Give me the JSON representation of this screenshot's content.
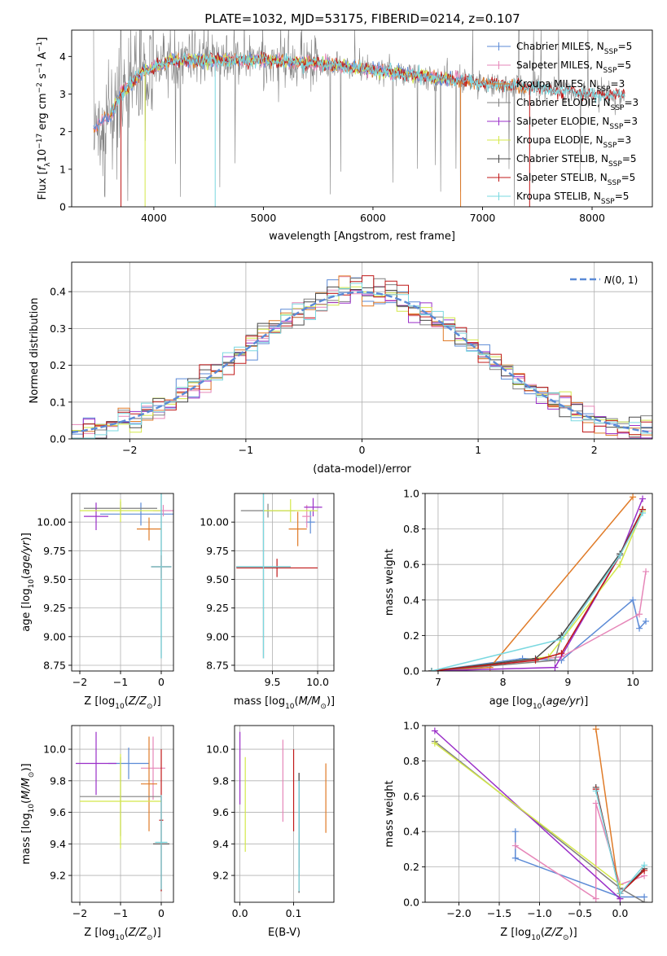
{
  "figure": {
    "title": "PLATE=1032, MJD=53175, FIBERID=0214, z=0.107"
  },
  "colors": {
    "Chabrier MILES": "#5b8ad6",
    "Salpeter MILES": "#e686b8",
    "Kroupa MILES": "#e07b28",
    "Chabrier ELODIE": "#808080",
    "Salpeter ELODIE": "#9a2fc8",
    "Kroupa ELODIE": "#d4e84a",
    "Chabrier STELIB": "#4a4a4a",
    "Salpeter STELIB": "#c01818",
    "Kroupa STELIB": "#7ad8e0"
  },
  "legends": {
    "spectrum": [
      "Chabrier MILES, N_SSP=5",
      "Salpeter MILES, N_SSP=5",
      "Kroupa MILES, N_SSP=3",
      "Chabrier ELODIE, N_SSP=3",
      "Salpeter ELODIE, N_SSP=3",
      "Kroupa ELODIE, N_SSP=3",
      "Chabrier STELIB, N_SSP=5",
      "Salpeter STELIB, N_SSP=5",
      "Kroupa STELIB, N_SSP=5"
    ],
    "residual": "N(0,1)"
  },
  "chart_data": [
    {
      "id": "spectrum",
      "type": "line",
      "xlabel": "wavelength [Angstrom, rest frame]",
      "ylabel": "Flux [f_λ10^-17 erg cm^-2 s^-1 A^-1]",
      "xlim": [
        3250,
        8550
      ],
      "ylim": [
        0,
        4.7
      ],
      "xticks": [
        4000,
        5000,
        6000,
        7000,
        8000
      ],
      "yticks": [
        0,
        1,
        2,
        3,
        4
      ],
      "grid": false,
      "legend": "top-right",
      "envelope": [
        [
          3450,
          2.1
        ],
        [
          3600,
          2.4
        ],
        [
          3700,
          3.0
        ],
        [
          3800,
          3.3
        ],
        [
          3900,
          3.6
        ],
        [
          4000,
          3.7
        ],
        [
          4200,
          3.9
        ],
        [
          4500,
          3.9
        ],
        [
          5000,
          3.9
        ],
        [
          5500,
          3.8
        ],
        [
          6000,
          3.65
        ],
        [
          6500,
          3.45
        ],
        [
          7000,
          3.3
        ],
        [
          7500,
          3.15
        ],
        [
          8000,
          3.0
        ],
        [
          8300,
          2.95
        ]
      ]
    },
    {
      "id": "residuals",
      "type": "histogram",
      "xlabel": "(data-model)/error",
      "ylabel": "Normed distribution",
      "xlim": [
        -2.5,
        2.5
      ],
      "ylim": [
        0,
        0.48
      ],
      "xticks": [
        -2,
        -1,
        0,
        1,
        2
      ],
      "yticks": [
        0.0,
        0.1,
        0.2,
        0.3,
        0.4
      ],
      "grid": true,
      "legend": "top-right",
      "bin_width": 0.1,
      "reference": "normal(0,1)"
    },
    {
      "id": "age-vs-Z",
      "type": "scatter",
      "xlabel": "Z [log10(Z/Z☉)]",
      "ylabel": "age  [log10(age/yr)]",
      "xlim": [
        -2.2,
        0.3
      ],
      "ylim": [
        8.7,
        10.25
      ],
      "xticks": [
        -2,
        -1,
        0
      ],
      "yticks": [
        8.75,
        9.0,
        9.25,
        9.5,
        9.75,
        10.0
      ],
      "grid": true,
      "points": [
        {
          "s": "Chabrier MILES",
          "x": -0.5,
          "y": 10.07,
          "xerr": 1.0,
          "yerr": 0.1
        },
        {
          "s": "Salpeter MILES",
          "x": 0.05,
          "y": 10.1,
          "xerr": 0.25,
          "yerr": 0.05
        },
        {
          "s": "Kroupa MILES",
          "x": -0.3,
          "y": 9.94,
          "xerr": 0.3,
          "yerr": 0.1
        },
        {
          "s": "Chabrier ELODIE",
          "x": -1.0,
          "y": 10.12,
          "xerr": 0.9,
          "yerr": 0.06
        },
        {
          "s": "Salpeter ELODIE",
          "x": -1.6,
          "y": 10.05,
          "xerr": 0.3,
          "yerr": 0.12
        },
        {
          "s": "Kroupa ELODIE",
          "x": -1.0,
          "y": 10.1,
          "xerr": 1.0,
          "yerr": 0.1
        },
        {
          "s": "Chabrier STELIB",
          "x": 0.0,
          "y": 9.61,
          "xerr": 0.25,
          "yerr": 0.8
        },
        {
          "s": "Salpeter STELIB",
          "x": 0.0,
          "y": 9.61,
          "xerr": 0.25,
          "yerr": 0.1
        },
        {
          "s": "Kroupa STELIB",
          "x": 0.0,
          "y": 9.61,
          "xerr": 0.25,
          "yerr": 0.8
        }
      ]
    },
    {
      "id": "age-vs-mass",
      "type": "scatter",
      "xlabel": "mass [log10(M/M☉)]",
      "ylabel": "",
      "xlim": [
        9.08,
        10.18
      ],
      "ylim": [
        8.7,
        10.25
      ],
      "xticks": [
        9.5,
        10.0
      ],
      "yticks": [
        8.75,
        9.0,
        9.25,
        9.5,
        9.75,
        10.0
      ],
      "grid": true,
      "points": [
        {
          "s": "Chabrier MILES",
          "x": 9.92,
          "y": 10.0,
          "xerr": 0.05,
          "yerr": 0.1
        },
        {
          "s": "Salpeter MILES",
          "x": 9.88,
          "y": 10.05,
          "xerr": 0.05,
          "yerr": 0.1
        },
        {
          "s": "Kroupa MILES",
          "x": 9.78,
          "y": 9.94,
          "xerr": 0.1,
          "yerr": 0.15
        },
        {
          "s": "Chabrier ELODIE",
          "x": 9.45,
          "y": 10.1,
          "xerr": 0.3,
          "yerr": 0.06
        },
        {
          "s": "Salpeter ELODIE",
          "x": 9.95,
          "y": 10.13,
          "xerr": 0.1,
          "yerr": 0.08
        },
        {
          "s": "Kroupa ELODIE",
          "x": 9.7,
          "y": 10.1,
          "xerr": 0.3,
          "yerr": 0.1
        },
        {
          "s": "Chabrier STELIB",
          "x": 9.4,
          "y": 9.61,
          "xerr": 0.3,
          "yerr": 0.8
        },
        {
          "s": "Salpeter STELIB",
          "x": 9.55,
          "y": 9.6,
          "xerr": 0.45,
          "yerr": 0.08
        },
        {
          "s": "Kroupa STELIB",
          "x": 9.4,
          "y": 9.61,
          "xerr": 0.3,
          "yerr": 0.8
        }
      ]
    },
    {
      "id": "weight-vs-age",
      "type": "line",
      "xlabel": "age  [log10(age/yr)]",
      "ylabel": "mass weight",
      "xlim": [
        6.8,
        10.3
      ],
      "ylim": [
        0,
        1.0
      ],
      "xticks": [
        7,
        8,
        9,
        10
      ],
      "yticks": [
        0.0,
        0.2,
        0.4,
        0.6,
        0.8,
        1.0
      ],
      "grid": true,
      "series": [
        {
          "s": "Chabrier MILES",
          "pts": [
            [
              6.9,
              0.0
            ],
            [
              8.3,
              0.07
            ],
            [
              8.9,
              0.06
            ],
            [
              10.0,
              0.4
            ],
            [
              10.1,
              0.24
            ],
            [
              10.2,
              0.28
            ]
          ]
        },
        {
          "s": "Salpeter MILES",
          "pts": [
            [
              6.9,
              0.0
            ],
            [
              8.9,
              0.08
            ],
            [
              10.1,
              0.32
            ],
            [
              10.2,
              0.56
            ]
          ]
        },
        {
          "s": "Kroupa MILES",
          "pts": [
            [
              6.9,
              0.0
            ],
            [
              7.8,
              0.02
            ],
            [
              10.0,
              0.98
            ]
          ]
        },
        {
          "s": "Chabrier ELODIE",
          "pts": [
            [
              6.9,
              0.0
            ],
            [
              8.8,
              0.06
            ],
            [
              8.9,
              0.2
            ],
            [
              9.8,
              0.65
            ],
            [
              10.15,
              0.91
            ]
          ]
        },
        {
          "s": "Salpeter ELODIE",
          "pts": [
            [
              6.9,
              0.0
            ],
            [
              8.8,
              0.02
            ],
            [
              9.8,
              0.65
            ],
            [
              10.15,
              0.97
            ]
          ]
        },
        {
          "s": "Kroupa ELODIE",
          "pts": [
            [
              6.9,
              0.0
            ],
            [
              8.7,
              0.08
            ],
            [
              9.8,
              0.6
            ],
            [
              10.15,
              0.9
            ]
          ]
        },
        {
          "s": "Chabrier STELIB",
          "pts": [
            [
              6.9,
              0.0
            ],
            [
              8.5,
              0.07
            ],
            [
              8.9,
              0.2
            ],
            [
              9.8,
              0.66
            ],
            [
              10.15,
              0.91
            ]
          ]
        },
        {
          "s": "Salpeter STELIB",
          "pts": [
            [
              6.9,
              0.0
            ],
            [
              8.5,
              0.06
            ],
            [
              8.9,
              0.1
            ],
            [
              9.8,
              0.65
            ],
            [
              10.15,
              0.91
            ]
          ]
        },
        {
          "s": "Kroupa STELIB",
          "pts": [
            [
              6.9,
              0.0
            ],
            [
              8.9,
              0.18
            ],
            [
              9.8,
              0.65
            ],
            [
              10.15,
              0.89
            ]
          ]
        }
      ]
    },
    {
      "id": "mass-vs-Z",
      "type": "scatter",
      "xlabel": "Z [log10(Z/Z☉)]",
      "ylabel": "mass [log10(M/M☉)]",
      "xlim": [
        -2.2,
        0.3
      ],
      "ylim": [
        9.03,
        10.15
      ],
      "xticks": [
        -2,
        -1,
        0
      ],
      "yticks": [
        9.2,
        9.4,
        9.6,
        9.8,
        10.0
      ],
      "grid": true,
      "points": [
        {
          "s": "Chabrier MILES",
          "x": -0.8,
          "y": 9.91,
          "xerr": 0.5,
          "yerr": 0.1
        },
        {
          "s": "Salpeter MILES",
          "x": -0.2,
          "y": 9.88,
          "xerr": 0.3,
          "yerr": 0.2
        },
        {
          "s": "Kroupa MILES",
          "x": -0.3,
          "y": 9.78,
          "xerr": 0.2,
          "yerr": 0.3
        },
        {
          "s": "Chabrier ELODIE",
          "x": -1.0,
          "y": 9.7,
          "xerr": 1.0,
          "yerr": 0.25
        },
        {
          "s": "Salpeter ELODIE",
          "x": -1.6,
          "y": 9.91,
          "xerr": 0.5,
          "yerr": 0.2
        },
        {
          "s": "Kroupa ELODIE",
          "x": -1.0,
          "y": 9.67,
          "xerr": 1.0,
          "yerr": 0.3
        },
        {
          "s": "Chabrier STELIB",
          "x": 0.0,
          "y": 9.4,
          "xerr": 0.2,
          "yerr": 0.3
        },
        {
          "s": "Salpeter STELIB",
          "x": 0.0,
          "y": 9.55,
          "xerr": 0.05,
          "yerr": 0.45
        },
        {
          "s": "Kroupa STELIB",
          "x": 0.0,
          "y": 9.41,
          "xerr": 0.15,
          "yerr": 0.3
        }
      ]
    },
    {
      "id": "mass-vs-EBV",
      "type": "scatter",
      "xlabel": "E(B-V)",
      "ylabel": "",
      "xlim": [
        -0.01,
        0.175
      ],
      "ylim": [
        9.03,
        10.15
      ],
      "xticks": [
        0.0,
        0.1
      ],
      "yticks": [
        9.2,
        9.4,
        9.6,
        9.8,
        10.0
      ],
      "grid": true,
      "points": [
        {
          "s": "Chabrier MILES",
          "x": 0.11,
          "y": 9.5,
          "xerr": 0,
          "yerr": 0.3
        },
        {
          "s": "Salpeter MILES",
          "x": 0.08,
          "y": 9.8,
          "xerr": 0,
          "yerr": 0.26
        },
        {
          "s": "Kroupa MILES",
          "x": 0.16,
          "y": 9.69,
          "xerr": 0,
          "yerr": 0.22
        },
        {
          "s": "Chabrier ELODIE",
          "x": 0.11,
          "y": 9.55,
          "xerr": 0,
          "yerr": 0.3
        },
        {
          "s": "Salpeter ELODIE",
          "x": 0.0,
          "y": 9.88,
          "xerr": 0,
          "yerr": 0.23
        },
        {
          "s": "Kroupa ELODIE",
          "x": 0.01,
          "y": 9.65,
          "xerr": 0,
          "yerr": 0.3
        },
        {
          "s": "Chabrier STELIB",
          "x": 0.11,
          "y": 9.47,
          "xerr": 0,
          "yerr": 0.38
        },
        {
          "s": "Salpeter STELIB",
          "x": 0.1,
          "y": 9.74,
          "xerr": 0,
          "yerr": 0.26
        },
        {
          "s": "Kroupa STELIB",
          "x": 0.11,
          "y": 9.45,
          "xerr": 0,
          "yerr": 0.35
        }
      ]
    },
    {
      "id": "weight-vs-Z",
      "type": "line",
      "xlabel": "Z [log10(Z/Z☉)]",
      "ylabel": "mass weight",
      "xlim": [
        -2.42,
        0.4
      ],
      "ylim": [
        0,
        1.0
      ],
      "xticks": [
        -2.0,
        -1.5,
        -1.0,
        -0.5,
        0.0
      ],
      "yticks": [
        0.0,
        0.2,
        0.4,
        0.6,
        0.8,
        1.0
      ],
      "grid": true,
      "series": [
        {
          "s": "Chabrier MILES",
          "pts": [
            [
              -1.3,
              0.4
            ],
            [
              -1.3,
              0.25
            ],
            [
              0.0,
              0.03
            ],
            [
              0.3,
              0.03
            ]
          ]
        },
        {
          "s": "Salpeter MILES",
          "pts": [
            [
              -1.3,
              0.32
            ],
            [
              -0.3,
              0.02
            ],
            [
              -0.3,
              0.56
            ],
            [
              0.0,
              0.1
            ],
            [
              0.3,
              0.15
            ]
          ]
        },
        {
          "s": "Kroupa MILES",
          "pts": [
            [
              -0.3,
              0.98
            ],
            [
              0.0,
              0.02
            ]
          ]
        },
        {
          "s": "Chabrier ELODIE",
          "pts": [
            [
              -2.3,
              0.91
            ],
            [
              0.0,
              0.08
            ],
            [
              0.3,
              0.0
            ]
          ]
        },
        {
          "s": "Salpeter ELODIE",
          "pts": [
            [
              -2.3,
              0.97
            ],
            [
              0.0,
              0.02
            ]
          ]
        },
        {
          "s": "Kroupa ELODIE",
          "pts": [
            [
              -2.3,
              0.9
            ],
            [
              0.0,
              0.1
            ]
          ]
        },
        {
          "s": "Chabrier STELIB",
          "pts": [
            [
              -0.3,
              0.65
            ],
            [
              0.0,
              0.05
            ],
            [
              0.3,
              0.19
            ]
          ]
        },
        {
          "s": "Salpeter STELIB",
          "pts": [
            [
              -0.3,
              0.64
            ],
            [
              0.0,
              0.05
            ],
            [
              0.3,
              0.18
            ]
          ]
        },
        {
          "s": "Kroupa STELIB",
          "pts": [
            [
              -0.3,
              0.63
            ],
            [
              0.0,
              0.05
            ],
            [
              0.3,
              0.21
            ]
          ]
        }
      ]
    }
  ]
}
